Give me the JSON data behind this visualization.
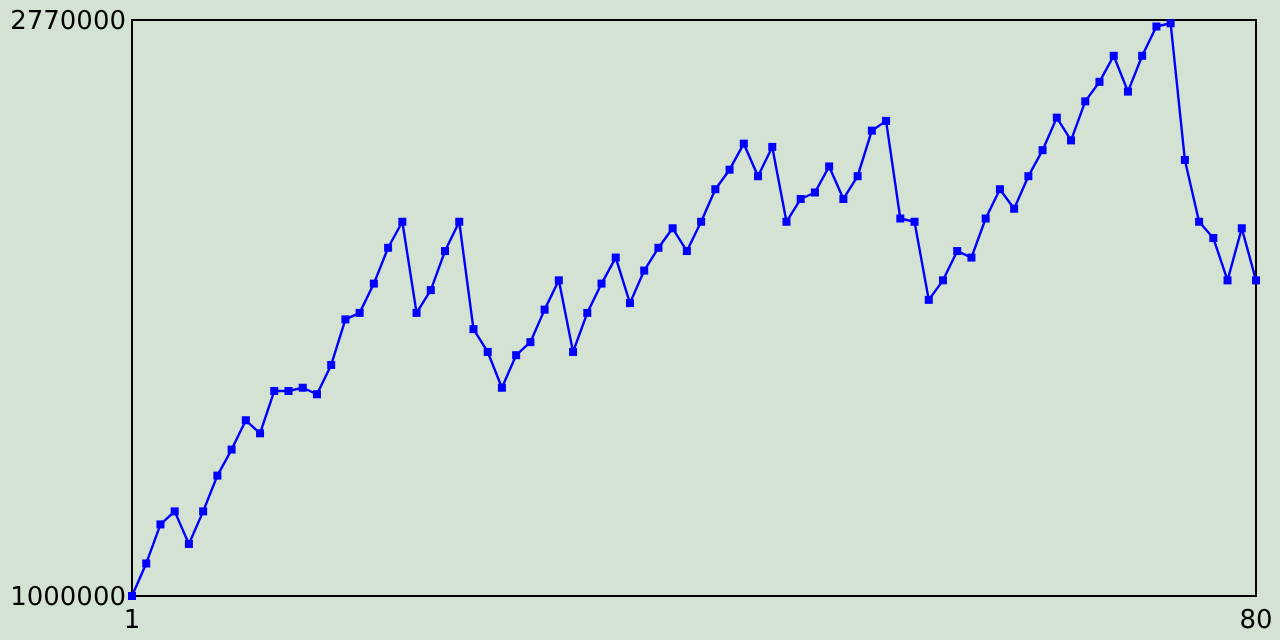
{
  "chart_data": {
    "type": "line",
    "x": [
      1,
      2,
      3,
      4,
      5,
      6,
      7,
      8,
      9,
      10,
      11,
      12,
      13,
      14,
      15,
      16,
      17,
      18,
      19,
      20,
      21,
      22,
      23,
      24,
      25,
      26,
      27,
      28,
      29,
      30,
      31,
      32,
      33,
      34,
      35,
      36,
      37,
      38,
      39,
      40,
      41,
      42,
      43,
      44,
      45,
      46,
      47,
      48,
      49,
      50,
      51,
      52,
      53,
      54,
      55,
      56,
      57,
      58,
      59,
      60,
      61,
      62,
      63,
      64,
      65,
      66,
      67,
      68,
      69,
      70,
      71,
      72,
      73,
      74,
      75,
      76,
      77,
      78,
      79,
      80
    ],
    "series": [
      {
        "color": "#0000ff",
        "values": [
          1000000,
          1100000,
          1220000,
          1260000,
          1160000,
          1260000,
          1370000,
          1450000,
          1540000,
          1500000,
          1630000,
          1630000,
          1640000,
          1620000,
          1710000,
          1850000,
          1870000,
          1960000,
          2070000,
          2150000,
          1870000,
          1940000,
          2060000,
          2150000,
          1820000,
          1750000,
          1640000,
          1740000,
          1780000,
          1880000,
          1970000,
          1750000,
          1870000,
          1960000,
          2040000,
          1900000,
          2000000,
          2070000,
          2130000,
          2060000,
          2150000,
          2250000,
          2310000,
          2390000,
          2290000,
          2380000,
          2150000,
          2220000,
          2240000,
          2320000,
          2220000,
          2290000,
          2430000,
          2460000,
          2160000,
          2150000,
          1910000,
          1970000,
          2060000,
          2040000,
          2160000,
          2250000,
          2190000,
          2290000,
          2370000,
          2470000,
          2400000,
          2520000,
          2580000,
          2660000,
          2550000,
          2660000,
          2750000,
          2760000,
          2340000,
          2150000,
          2100000,
          1970000,
          2130000,
          1970000
        ]
      }
    ],
    "xlim": [
      1,
      80
    ],
    "xticks": [
      1,
      80
    ],
    "ylim": [
      1000000,
      2770000
    ],
    "yticks": [
      1000000,
      2770000
    ],
    "marker": "square",
    "line_style": "solid"
  }
}
